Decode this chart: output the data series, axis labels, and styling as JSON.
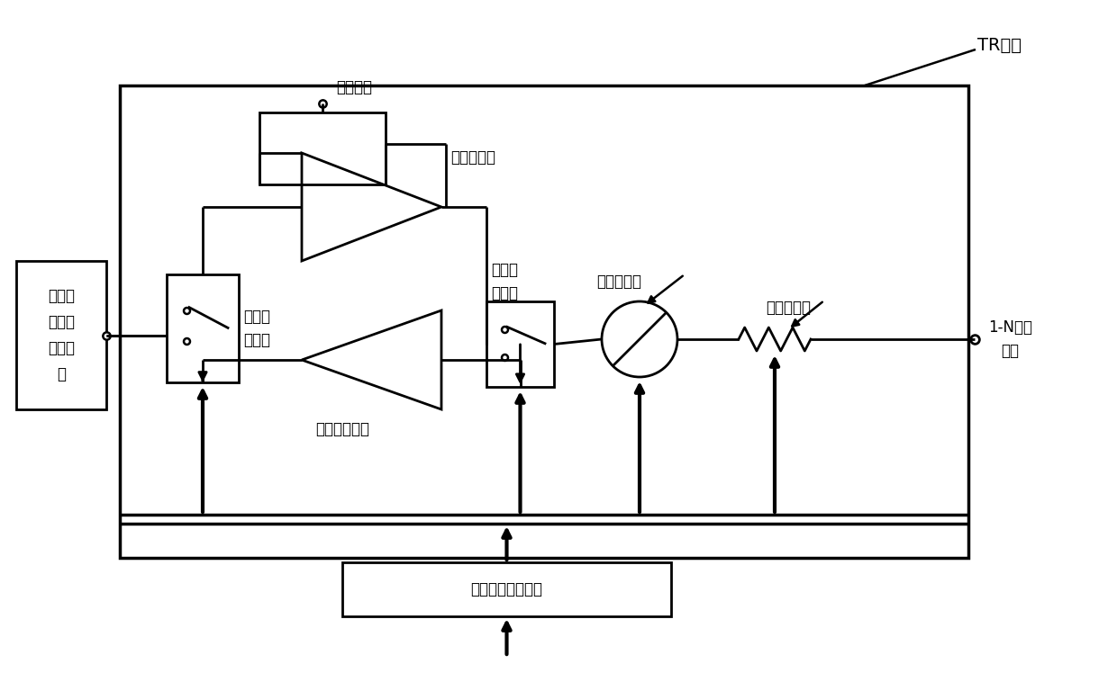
{
  "bg_color": "#ffffff",
  "line_color": "#000000",
  "title": "TR通道",
  "label_power_supply": "电源供电",
  "label_antenna": "毫米波\n相控阵\n天线阵\n列",
  "label_sw1": "第一射\n频开关",
  "label_sw2": "第二射\n频开关",
  "label_pa": "功率放大器",
  "label_lna": "低噪声放大器",
  "label_phase_shifter": "数控移相器",
  "label_attenuator": "数控衰减器",
  "label_splitter": "1-N功分\n网络",
  "label_serial": "串并转换控制电路",
  "fontsize": 13,
  "fontsize_small": 12
}
